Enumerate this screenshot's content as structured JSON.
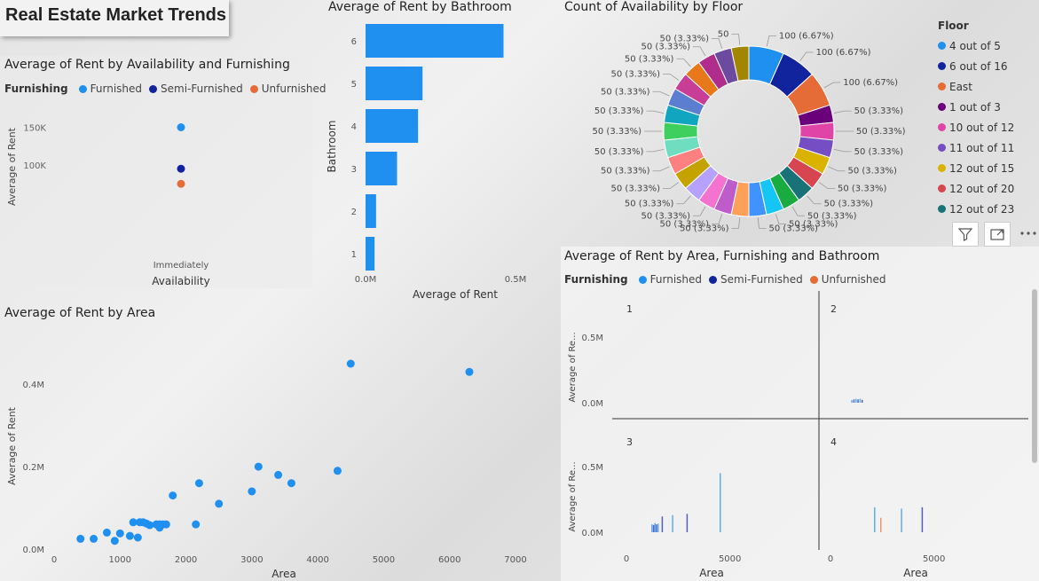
{
  "report_title": "Real Estate Market Trends",
  "colors": {
    "furnished": "#1f8ff0",
    "semi": "#12239e",
    "unfurnished": "#e66c37"
  },
  "legend_furnishing": {
    "label": "Furnishing",
    "items": [
      "Furnished",
      "Semi-Furnished",
      "Unfurnished"
    ]
  },
  "chart_data": [
    {
      "id": "avail",
      "type": "scatter",
      "title": "Average of Rent by Availability and Furnishing",
      "xlabel": "Availability",
      "ylabel": "Average of Rent",
      "categories": [
        "Immediately"
      ],
      "yticks": [
        "100K",
        "150K"
      ],
      "ylim": [
        60000,
        160000
      ],
      "series": [
        {
          "name": "Furnished",
          "values": [
            150000
          ]
        },
        {
          "name": "Semi-Furnished",
          "values": [
            95000
          ]
        },
        {
          "name": "Unfurnished",
          "values": [
            75000
          ]
        }
      ]
    },
    {
      "id": "bath",
      "type": "bar",
      "title": "Average of Rent by Bathroom",
      "xlabel": "Average of Rent",
      "ylabel": "Bathroom",
      "categories": [
        "6",
        "5",
        "4",
        "3",
        "2",
        "1"
      ],
      "values": [
        460000,
        190000,
        175000,
        105000,
        35000,
        30000
      ],
      "xticks": [
        "0.0M",
        "0.5M"
      ],
      "xlim": [
        0,
        500000
      ]
    },
    {
      "id": "floor",
      "type": "pie",
      "title": "Count of Availability by Floor",
      "legend_title": "Floor",
      "legend_items": [
        "4 out of 5",
        "6 out of 16",
        "East",
        "1 out of 3",
        "10 out of 12",
        "11 out of 11",
        "12 out of 15",
        "12 out of 20",
        "12 out of 23"
      ],
      "values": [
        100,
        100,
        100,
        50,
        50,
        50,
        50,
        50,
        50,
        50,
        50,
        50,
        50,
        50,
        50,
        50,
        50,
        50,
        50,
        50,
        50,
        50,
        50,
        50,
        50,
        50,
        50
      ],
      "labels": [
        "100 (6.67%)",
        "100 (6.67%)",
        "100 (6.67%)",
        "50 (3.33%)",
        "50 (3.33%)",
        "50 (3.33%)",
        "50 (3.33%)",
        "50 (3.33%)",
        "50 (3.33%)",
        "50 (3.33%)",
        "50 (3.33%)",
        "50 (3.33%)",
        "50 (3.33%)",
        "50 (3.33%)",
        "50 (3.33%)",
        "50 (3.33%)",
        "50 (3.33%)",
        "50 (3.33%)",
        "50 (3.33%)",
        "50 (3.33%)",
        "50 (3.33%)",
        "50 (3.33%)",
        "50 (3.33%)",
        "50 (3.33%)",
        "50 (3.33%)",
        "50 (3.33%)",
        "50"
      ],
      "slice_colors": [
        "#1f8ff0",
        "#12239e",
        "#e66c37",
        "#6b007b",
        "#e044a7",
        "#744ec2",
        "#d9b300",
        "#d64550",
        "#197278",
        "#1aab40",
        "#15c6f4",
        "#4092ff",
        "#ffa058",
        "#be5dc9",
        "#f472d0",
        "#b5a1ff",
        "#c4a200",
        "#ff8080",
        "#6fddc0",
        "#3fcf5e",
        "#12a5c0",
        "#5c7ed0",
        "#c83d95",
        "#e8791a",
        "#b02d8d",
        "#6b4aa0",
        "#a38500"
      ]
    },
    {
      "id": "area",
      "type": "scatter",
      "title": "Average of Rent by Area",
      "xlabel": "Area",
      "ylabel": "Average of Rent",
      "xticks": [
        "0",
        "1000",
        "2000",
        "3000",
        "4000",
        "5000",
        "6000",
        "7000"
      ],
      "yticks": [
        "0.0M",
        "0.2M",
        "0.4M"
      ],
      "xlim": [
        0,
        7000
      ],
      "ylim": [
        0,
        450000
      ],
      "points": [
        [
          400,
          25000
        ],
        [
          600,
          25000
        ],
        [
          800,
          40000
        ],
        [
          920,
          20000
        ],
        [
          1000,
          38000
        ],
        [
          1150,
          32000
        ],
        [
          1200,
          65000
        ],
        [
          1300,
          65000
        ],
        [
          1350,
          65000
        ],
        [
          1270,
          28000
        ],
        [
          1400,
          62000
        ],
        [
          1450,
          58000
        ],
        [
          1550,
          60000
        ],
        [
          1600,
          52000
        ],
        [
          1650,
          60000
        ],
        [
          1700,
          60000
        ],
        [
          1600,
          60000
        ],
        [
          1800,
          130000
        ],
        [
          2150,
          60000
        ],
        [
          2200,
          160000
        ],
        [
          2500,
          110000
        ],
        [
          3000,
          140000
        ],
        [
          3100,
          200000
        ],
        [
          3400,
          180000
        ],
        [
          3600,
          160000
        ],
        [
          4300,
          190000
        ],
        [
          4500,
          450000
        ],
        [
          6300,
          430000
        ]
      ]
    },
    {
      "id": "small",
      "type": "bar",
      "title": "Average of Rent by Area, Furnishing and Bathroom",
      "xlabel": "Area",
      "ylabel": "Average of Re...",
      "panels": [
        "1",
        "2",
        "3",
        "4"
      ],
      "yticks": [
        "0.0M",
        "0.5M"
      ],
      "xticks": [
        "0",
        "5000"
      ],
      "xlim": [
        0,
        9000
      ],
      "ylim": [
        0,
        600000
      ],
      "bars": [
        {
          "panel": "2",
          "x": [
            1000,
            1100,
            1200,
            1300,
            1400,
            1500
          ],
          "y": [
            20000,
            25000,
            30000,
            25000,
            30000,
            22000
          ]
        },
        {
          "panel": "3",
          "x": [
            1200,
            1280,
            1350,
            1420,
            1500,
            1700,
            2200,
            2900,
            4500
          ],
          "y": [
            60000,
            55000,
            70000,
            60000,
            65000,
            120000,
            130000,
            140000,
            450000
          ]
        },
        {
          "panel": "4",
          "x": [
            2100,
            2400,
            3400,
            4400
          ],
          "y": [
            190000,
            110000,
            180000,
            190000
          ]
        }
      ]
    }
  ]
}
